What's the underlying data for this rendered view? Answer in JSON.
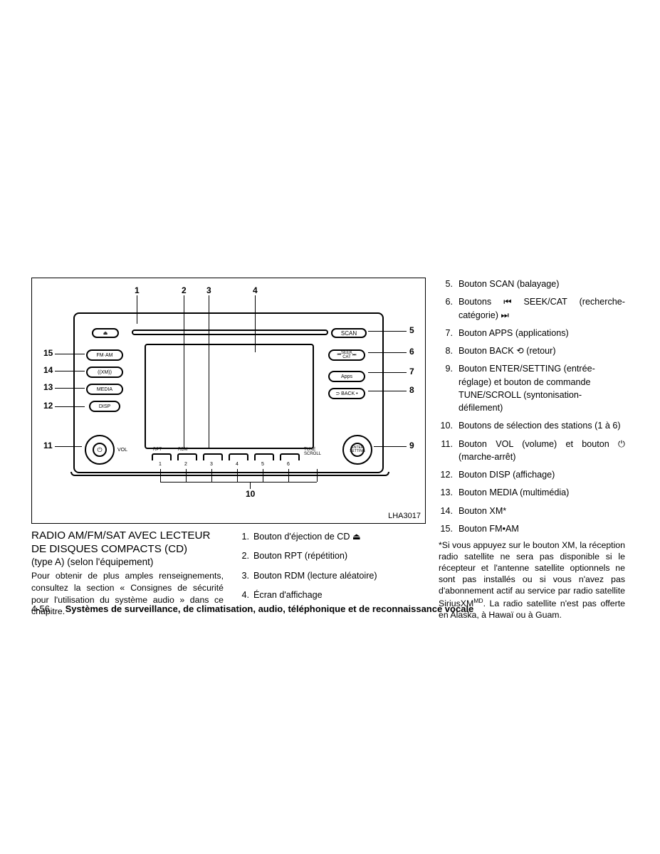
{
  "diagram": {
    "code": "LHA3017",
    "buttons": {
      "scan": "SCAN",
      "fmam": "FM·AM",
      "xm": "((XM))",
      "media": "MEDIA",
      "disp": "DISP",
      "seek": "SEEK\nCAT",
      "apps": "Apps",
      "back": "⊃ BACK •",
      "enter": "ENTER\nSETTING",
      "vol": "VOL",
      "tune": "TUNE\nSCROLL",
      "rpt": "RPT",
      "rdm": "RDM"
    },
    "callouts": [
      "1",
      "2",
      "3",
      "4",
      "5",
      "6",
      "7",
      "8",
      "9",
      "10",
      "11",
      "12",
      "13",
      "14",
      "15"
    ]
  },
  "title": {
    "line1": "RADIO AM/FM/SAT AVEC LECTEUR",
    "line2": "DE DISQUES COMPACTS (CD)",
    "subtitle": "(type A) (selon l'équipement)",
    "body": "Pour obtenir de plus amples renseignements, consultez la section « Consignes de sécurité pour l'utilisation du système audio » dans ce chapitre."
  },
  "legend_left": [
    {
      "n": "1.",
      "t": "Bouton d'éjection de CD  ⏏"
    },
    {
      "n": "2.",
      "t": "Bouton RPT (répétition)"
    },
    {
      "n": "3.",
      "t": "Bouton RDM (lecture aléatoire)"
    },
    {
      "n": "4.",
      "t": "Écran d'affichage"
    }
  ],
  "legend_right": [
    {
      "n": "5.",
      "t": "Bouton SCAN (balayage)"
    },
    {
      "n": "6.",
      "t": "Boutons ⏮      SEEK/CAT (recherche-catégorie)  ⏭",
      "just": true
    },
    {
      "n": "7.",
      "t": "Bouton APPS (applications)"
    },
    {
      "n": "8.",
      "t": "Bouton BACK   ⟲   (retour)"
    },
    {
      "n": "9.",
      "t": "Bouton ENTER/SETTING (entrée-réglage) et bouton de commande TUNE/SCROLL (syntonisation-défilement)"
    },
    {
      "n": "10.",
      "t": "Boutons de sélection des stations (1 à 6)"
    },
    {
      "n": "11.",
      "t": "Bouton VOL (volume) et bouton ⏻ (marche-arrêt)",
      "just": true
    },
    {
      "n": "12.",
      "t": "Bouton DISP (affichage)"
    },
    {
      "n": "13.",
      "t": "Bouton MEDIA (multimédia)"
    },
    {
      "n": "14.",
      "t": "Bouton XM*"
    },
    {
      "n": "15.",
      "t": "Bouton FM•AM"
    }
  ],
  "footnote": "*Si vous appuyez sur le bouton XM, la réception radio satellite ne sera pas disponible si le récepteur et l'antenne satellite optionnels ne sont pas installés ou si vous n'avez pas d'abonnement actif au service par radio satellite SiriusXM",
  "footnote_sup": "MD",
  "footnote_end": ". La radio satellite n'est pas offerte en Alaska, à Hawaï ou à Guam.",
  "footer": {
    "page": "4-56",
    "chapter": "Systèmes de surveillance, de climatisation, audio, téléphonique et de reconnaissance vocale"
  }
}
